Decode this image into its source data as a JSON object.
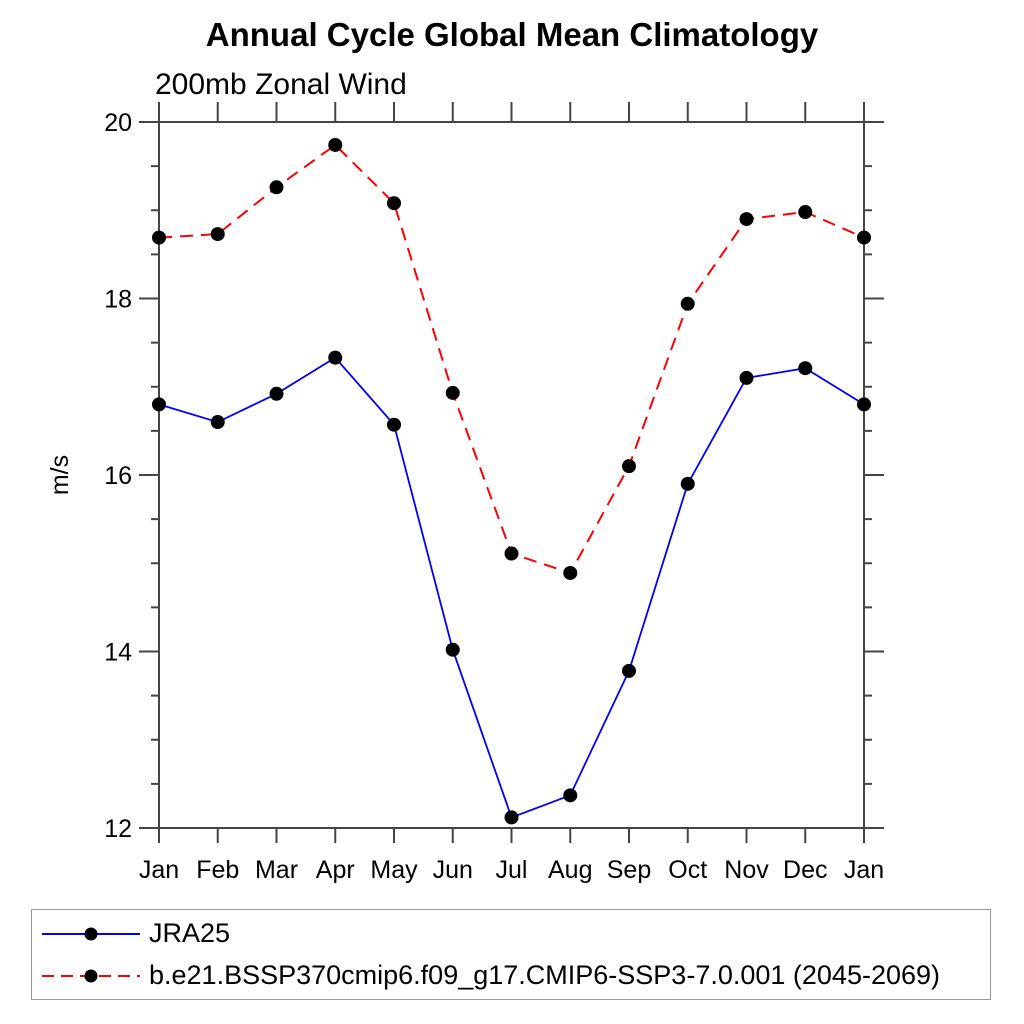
{
  "title": "Annual Cycle Global Mean Climatology",
  "subtitle": "200mb Zonal Wind",
  "chart_data": {
    "type": "line",
    "x": [
      "Jan",
      "Feb",
      "Mar",
      "Apr",
      "May",
      "Jun",
      "Jul",
      "Aug",
      "Sep",
      "Oct",
      "Nov",
      "Dec",
      "Jan"
    ],
    "xlabel": "",
    "ylabel": "m/s",
    "ylim": [
      12,
      20
    ],
    "yticks_major": [
      12,
      14,
      16,
      18,
      20
    ],
    "ytick_minor_step": 0.5,
    "grid": false,
    "legend_position": "bottom-left-box",
    "series": [
      {
        "name": "JRA25",
        "color": "#0000ff",
        "style": "solid",
        "marker": "circle",
        "marker_color": "#000000",
        "values": [
          16.8,
          16.6,
          16.92,
          17.33,
          16.57,
          14.02,
          12.12,
          12.37,
          13.78,
          15.9,
          17.1,
          17.21,
          16.8
        ]
      },
      {
        "name": "b.e21.BSSP370cmip6.f09_g17.CMIP6-SSP3-7.0.001 (2045-2069)",
        "color": "#ff0000",
        "style": "dashed",
        "marker": "circle",
        "marker_color": "#000000",
        "values": [
          18.69,
          18.73,
          19.26,
          19.74,
          19.08,
          16.93,
          15.11,
          14.89,
          16.1,
          17.94,
          18.9,
          18.98,
          18.69
        ]
      }
    ]
  },
  "colors": {
    "axis": "#444444",
    "text": "#000000",
    "legend_border": "#9a9a9a",
    "background": "#ffffff"
  }
}
